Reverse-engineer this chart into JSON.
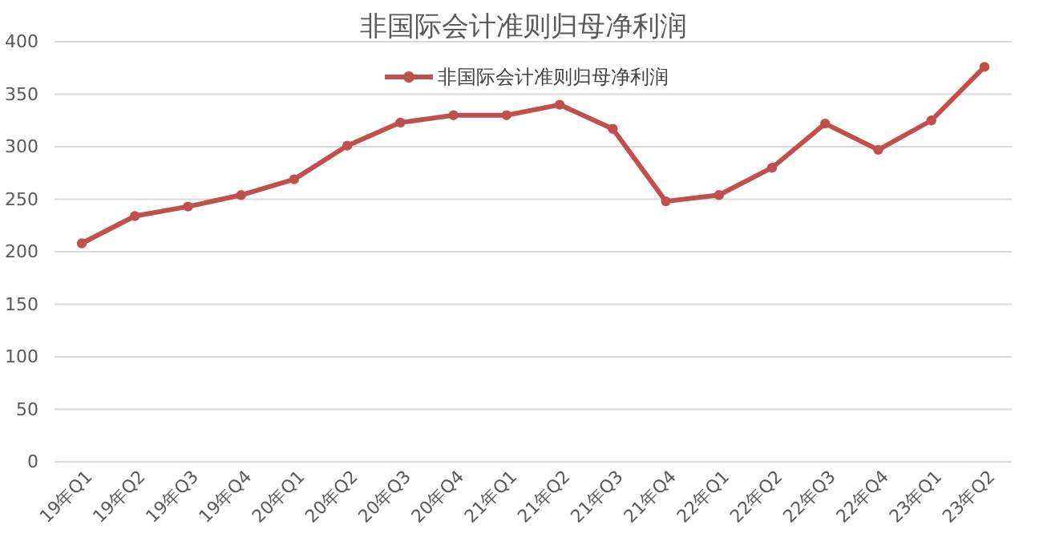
{
  "chart_data": {
    "type": "line",
    "title": "非国际会计准则归母净利润",
    "categories": [
      "19年Q1",
      "19年Q2",
      "19年Q3",
      "19年Q4",
      "20年Q1",
      "20年Q2",
      "20年Q3",
      "20年Q4",
      "21年Q1",
      "21年Q2",
      "21年Q3",
      "21年Q4",
      "22年Q1",
      "22年Q2",
      "22年Q3",
      "22年Q4",
      "23年Q1",
      "23年Q2"
    ],
    "series": [
      {
        "name": "非国际会计准则归母净利润",
        "color": "#c0504d",
        "values": [
          208,
          234,
          243,
          254,
          269,
          301,
          323,
          330,
          330,
          340,
          317,
          248,
          254,
          280,
          322,
          297,
          325,
          376
        ]
      }
    ],
    "ylim": [
      0,
      400
    ],
    "yticks": [
      0,
      50,
      100,
      150,
      200,
      250,
      300,
      350,
      400
    ],
    "grid": "y",
    "legend": "top",
    "marker": "circle",
    "line_style": "solid"
  }
}
